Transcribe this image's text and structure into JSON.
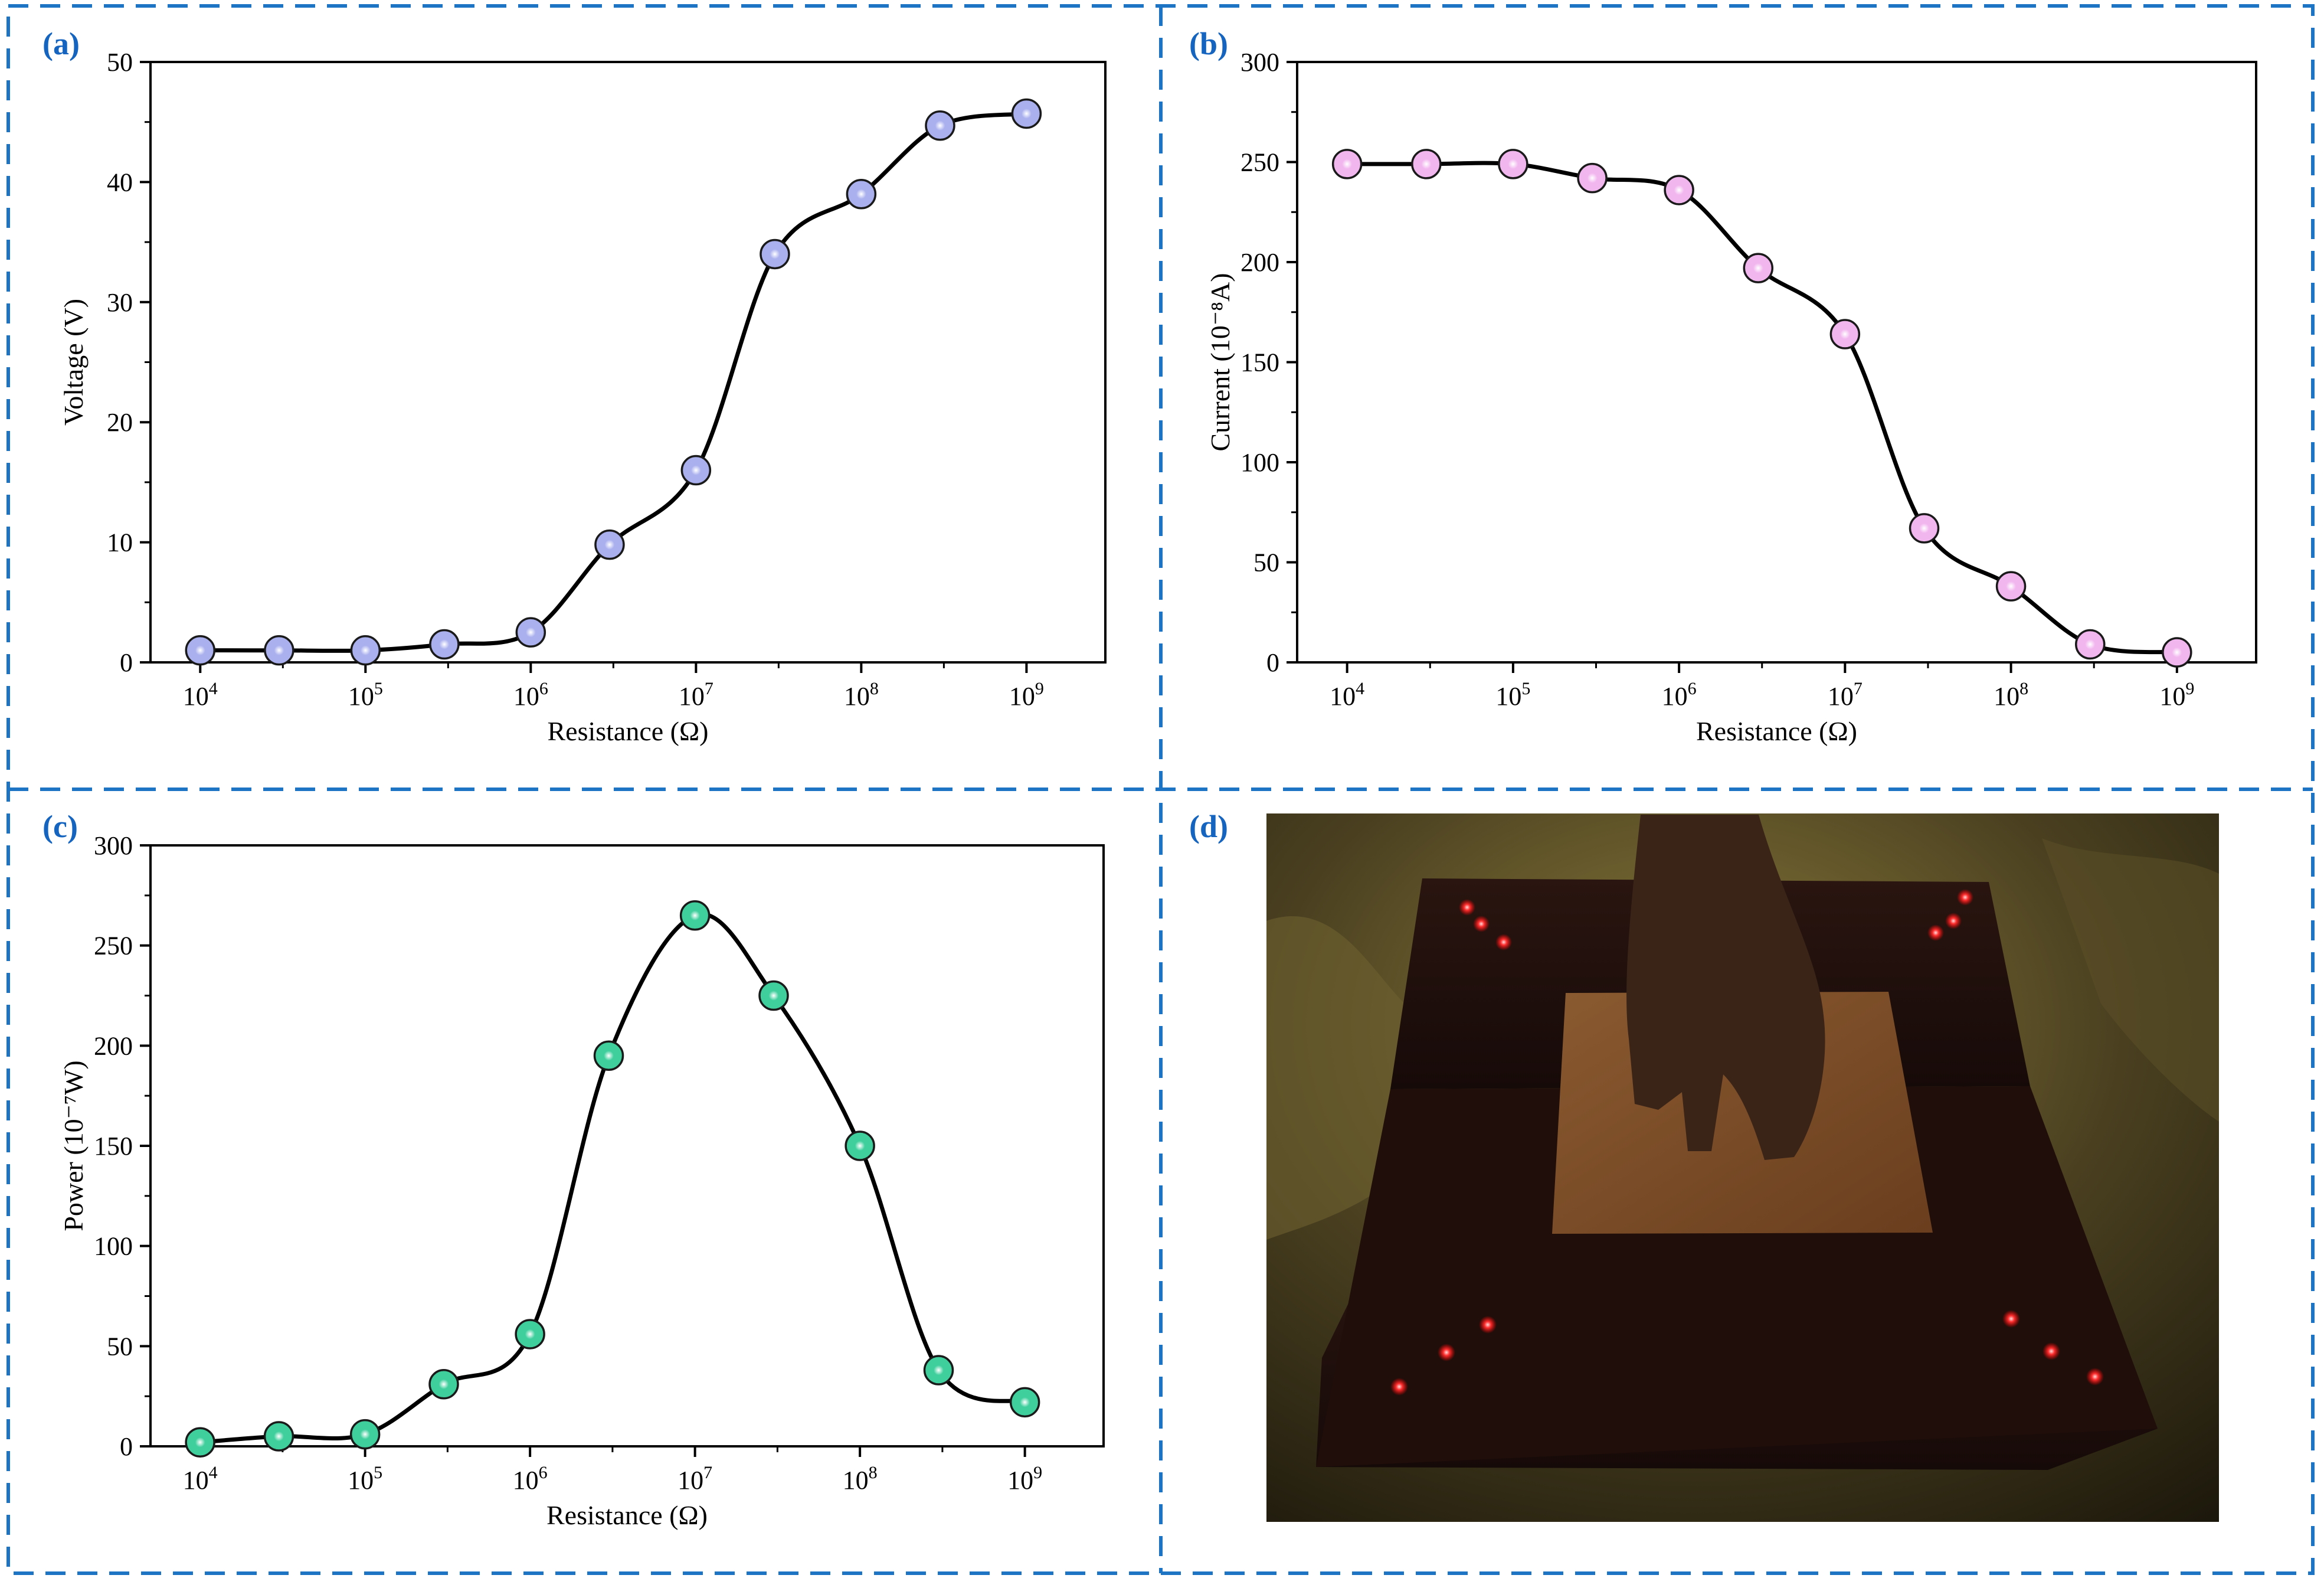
{
  "colors": {
    "frame": "#1e74c4",
    "panel_label": "#1565c0",
    "curve": "#000000",
    "voltage_marker": "#aab0ee",
    "current_marker": "#f2b6ef",
    "power_marker": "#3fcf9d"
  },
  "panels": {
    "a": {
      "label": "(a)"
    },
    "b": {
      "label": "(b)"
    },
    "c": {
      "label": "(c)"
    },
    "d": {
      "label": "(d)"
    }
  },
  "photo": {
    "description_icon": "photo-icon"
  },
  "chart_data": [
    {
      "type": "line",
      "panel": "a",
      "xlabel": "Resistance (Ω)",
      "ylabel": "Voltage (V)",
      "x_scale": "log",
      "xlim": [
        5000,
        3000000000
      ],
      "ylim": [
        0,
        50
      ],
      "x_ticks": [
        {
          "value": 10000,
          "base": "10",
          "exp": "4"
        },
        {
          "value": 100000,
          "base": "10",
          "exp": "5"
        },
        {
          "value": 1000000,
          "base": "10",
          "exp": "6"
        },
        {
          "value": 10000000,
          "base": "10",
          "exp": "7"
        },
        {
          "value": 100000000,
          "base": "10",
          "exp": "8"
        },
        {
          "value": 1000000000,
          "base": "10",
          "exp": "9"
        }
      ],
      "y_ticks": [
        "0",
        "10",
        "20",
        "30",
        "40",
        "50"
      ],
      "grid": false,
      "x": [
        10000,
        30000,
        100000,
        300000,
        1000000,
        3000000,
        10000000,
        30000000,
        100000000,
        300000000,
        1000000000
      ],
      "series": [
        {
          "values": [
            1,
            1,
            1,
            1.5,
            2.5,
            9.8,
            16,
            34,
            39,
            44.7,
            45.7
          ]
        }
      ]
    },
    {
      "type": "line",
      "panel": "b",
      "xlabel": "Resistance (Ω)",
      "ylabel": "Current (10⁻⁸A)",
      "x_scale": "log",
      "xlim": [
        5000,
        3000000000
      ],
      "ylim": [
        0,
        300
      ],
      "x_ticks": [
        {
          "value": 10000,
          "base": "10",
          "exp": "4"
        },
        {
          "value": 100000,
          "base": "10",
          "exp": "5"
        },
        {
          "value": 1000000,
          "base": "10",
          "exp": "6"
        },
        {
          "value": 10000000,
          "base": "10",
          "exp": "7"
        },
        {
          "value": 100000000,
          "base": "10",
          "exp": "8"
        },
        {
          "value": 1000000000,
          "base": "10",
          "exp": "9"
        }
      ],
      "y_ticks": [
        "0",
        "50",
        "100",
        "150",
        "200",
        "250",
        "300"
      ],
      "grid": false,
      "x": [
        10000,
        30000,
        100000,
        300000,
        1000000,
        3000000,
        10000000,
        30000000,
        100000000,
        300000000,
        1000000000
      ],
      "series": [
        {
          "values": [
            249,
            249,
            249,
            242,
            236,
            197,
            164,
            67,
            38,
            9,
            5
          ]
        }
      ]
    },
    {
      "type": "line",
      "panel": "c",
      "xlabel": "Resistance (Ω)",
      "ylabel": "Power (10⁻⁷W)",
      "x_scale": "log",
      "xlim": [
        5000,
        3000000000
      ],
      "ylim": [
        0,
        300
      ],
      "x_ticks": [
        {
          "value": 10000,
          "base": "10",
          "exp": "4"
        },
        {
          "value": 100000,
          "base": "10",
          "exp": "5"
        },
        {
          "value": 1000000,
          "base": "10",
          "exp": "6"
        },
        {
          "value": 10000000,
          "base": "10",
          "exp": "7"
        },
        {
          "value": 100000000,
          "base": "10",
          "exp": "8"
        },
        {
          "value": 1000000000,
          "base": "10",
          "exp": "9"
        }
      ],
      "y_ticks": [
        "0",
        "50",
        "100",
        "150",
        "200",
        "250",
        "300"
      ],
      "grid": false,
      "x": [
        10000,
        30000,
        100000,
        300000,
        1000000,
        3000000,
        10000000,
        30000000,
        100000000,
        300000000,
        1000000000
      ],
      "series": [
        {
          "values": [
            2,
            5,
            6,
            31,
            56,
            195,
            265,
            225,
            150,
            38,
            22
          ]
        }
      ]
    }
  ]
}
